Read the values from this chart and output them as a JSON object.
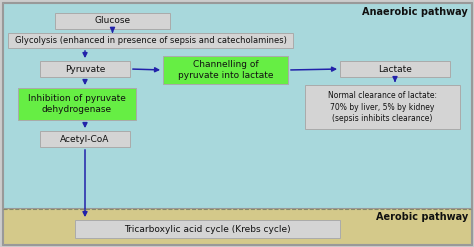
{
  "bg_anaerobic": "#a8d8dc",
  "bg_aerobic": "#d4c98a",
  "bg_outer": "#cccccc",
  "box_gray": "#d4d4d4",
  "box_green": "#66ee44",
  "arrow_color": "#2222aa",
  "text_dark": "#111111",
  "title_anaerobic": "Anaerobic pathway",
  "title_aerobic": "Aerobic pathway",
  "glucose": "Glucose",
  "glycolysis": "Glycolysis (enhanced in presence of sepsis and catecholamines)",
  "pyruvate": "Pyruvate",
  "channelling": "Channelling of\npyruvate into lactate",
  "lactate": "Lactate",
  "inhibition": "Inhibition of pyruvate\ndehydrogenase",
  "acetyl": "Acetyl-CoA",
  "tricarboxylic": "Tricarboxylic acid cycle (Krebs cycle)",
  "normal_clearance": "Normal clearance of lactate:\n70% by liver, 5% by kidney\n(sepsis inhibits clearance)"
}
